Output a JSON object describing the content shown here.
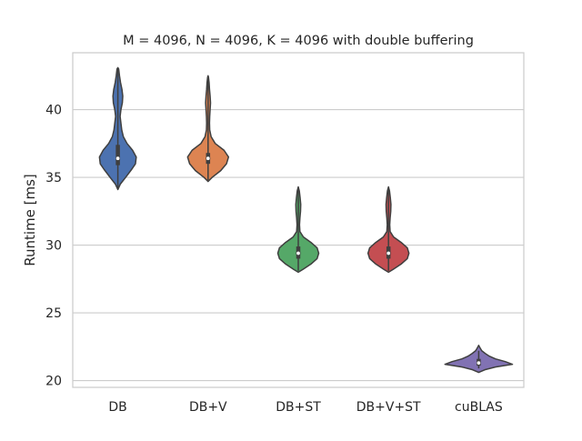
{
  "chart_data": {
    "type": "violin",
    "title": "M = 4096, N = 4096, K = 4096 with double buffering",
    "xlabel": "",
    "ylabel": "Runtime [ms]",
    "ylim": [
      19.5,
      44.2
    ],
    "yticks": [
      20,
      25,
      30,
      35,
      40
    ],
    "grid": "horizontal",
    "categories": [
      "DB",
      "DB+V",
      "DB+ST",
      "DB+V+ST",
      "cuBLAS"
    ],
    "violins": [
      {
        "name": "DB",
        "color": "#4c72b0",
        "median": 36.4,
        "q1": 35.9,
        "q3": 37.4,
        "min": 34.2,
        "max": 43.0,
        "profile": [
          [
            34.1,
            0
          ],
          [
            34.5,
            0.12
          ],
          [
            35.0,
            0.38
          ],
          [
            35.6,
            0.68
          ],
          [
            36.0,
            0.86
          ],
          [
            36.5,
            0.9
          ],
          [
            37.0,
            0.72
          ],
          [
            37.5,
            0.45
          ],
          [
            38.0,
            0.27
          ],
          [
            38.5,
            0.19
          ],
          [
            39.0,
            0.15
          ],
          [
            39.5,
            0.11
          ],
          [
            40.0,
            0.15
          ],
          [
            40.5,
            0.22
          ],
          [
            41.0,
            0.24
          ],
          [
            41.5,
            0.2
          ],
          [
            42.0,
            0.13
          ],
          [
            42.5,
            0.08
          ],
          [
            43.0,
            0.04
          ],
          [
            43.1,
            0
          ]
        ]
      },
      {
        "name": "DB+V",
        "color": "#dd8452",
        "median": 36.4,
        "q1": 36.0,
        "q3": 36.8,
        "min": 34.8,
        "max": 42.4,
        "profile": [
          [
            34.7,
            0
          ],
          [
            35.0,
            0.2
          ],
          [
            35.5,
            0.62
          ],
          [
            36.0,
            0.9
          ],
          [
            36.5,
            1.0
          ],
          [
            37.0,
            0.78
          ],
          [
            37.5,
            0.35
          ],
          [
            38.0,
            0.15
          ],
          [
            38.5,
            0.08
          ],
          [
            39.0,
            0.07
          ],
          [
            39.5,
            0.08
          ],
          [
            40.0,
            0.1
          ],
          [
            40.5,
            0.12
          ],
          [
            41.0,
            0.1
          ],
          [
            41.5,
            0.07
          ],
          [
            42.0,
            0.05
          ],
          [
            42.4,
            0.02
          ],
          [
            42.5,
            0
          ]
        ]
      },
      {
        "name": "DB+ST",
        "color": "#55a868",
        "median": 29.4,
        "q1": 29.0,
        "q3": 29.9,
        "min": 28.1,
        "max": 34.2,
        "profile": [
          [
            28.0,
            0
          ],
          [
            28.2,
            0.22
          ],
          [
            28.6,
            0.62
          ],
          [
            29.0,
            0.92
          ],
          [
            29.4,
            1.0
          ],
          [
            29.8,
            0.92
          ],
          [
            30.2,
            0.62
          ],
          [
            30.6,
            0.25
          ],
          [
            31.0,
            0.08
          ],
          [
            31.5,
            0.06
          ],
          [
            32.0,
            0.08
          ],
          [
            32.5,
            0.11
          ],
          [
            33.0,
            0.12
          ],
          [
            33.5,
            0.09
          ],
          [
            34.0,
            0.05
          ],
          [
            34.3,
            0
          ]
        ]
      },
      {
        "name": "DB+V+ST",
        "color": "#c44e52",
        "median": 29.4,
        "q1": 29.0,
        "q3": 29.9,
        "min": 28.1,
        "max": 34.2,
        "profile": [
          [
            28.0,
            0
          ],
          [
            28.2,
            0.22
          ],
          [
            28.6,
            0.62
          ],
          [
            29.0,
            0.92
          ],
          [
            29.4,
            1.0
          ],
          [
            29.8,
            0.92
          ],
          [
            30.2,
            0.62
          ],
          [
            30.6,
            0.25
          ],
          [
            31.0,
            0.08
          ],
          [
            31.5,
            0.06
          ],
          [
            32.0,
            0.08
          ],
          [
            32.5,
            0.11
          ],
          [
            33.0,
            0.12
          ],
          [
            33.5,
            0.09
          ],
          [
            34.0,
            0.05
          ],
          [
            34.3,
            0
          ]
        ]
      },
      {
        "name": "cuBLAS",
        "color": "#8172b3",
        "median": 21.3,
        "q1": 21.1,
        "q3": 21.6,
        "min": 20.9,
        "max": 22.2,
        "profile": [
          [
            20.6,
            0
          ],
          [
            20.8,
            0.3
          ],
          [
            21.0,
            0.82
          ],
          [
            21.2,
            1.65
          ],
          [
            21.4,
            1.3
          ],
          [
            21.6,
            0.82
          ],
          [
            21.8,
            0.52
          ],
          [
            22.0,
            0.32
          ],
          [
            22.2,
            0.15
          ],
          [
            22.4,
            0.07
          ],
          [
            22.6,
            0
          ]
        ]
      }
    ]
  }
}
